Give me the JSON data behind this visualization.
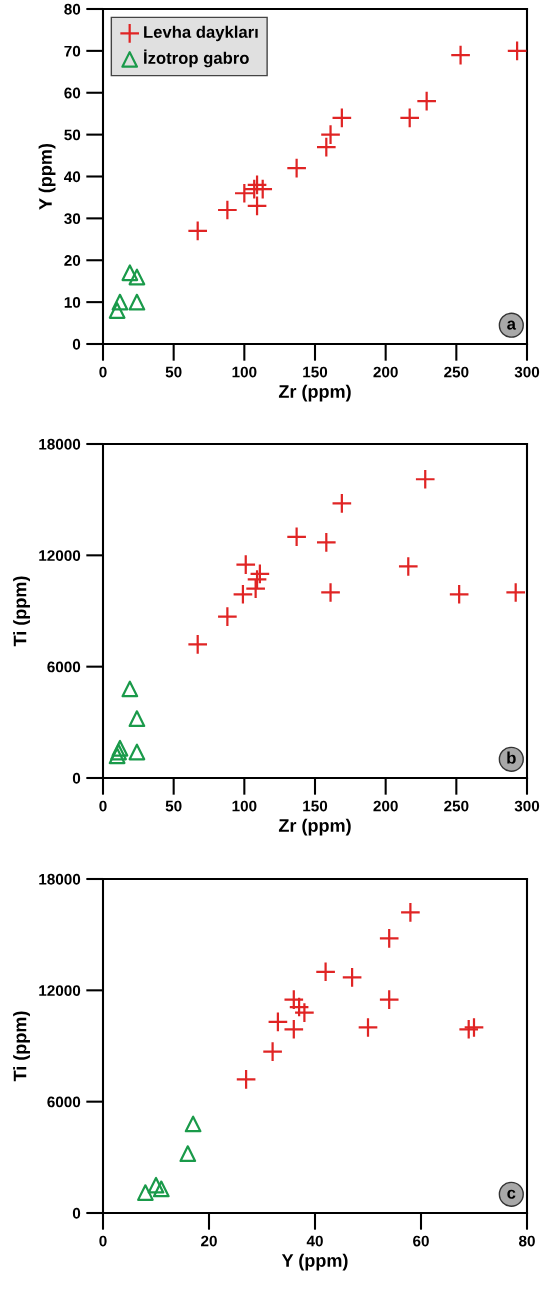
{
  "chart_data": [
    {
      "type": "scatter",
      "xlabel": "Zr (ppm)",
      "ylabel": "Y (ppm)",
      "xlim": [
        0,
        300
      ],
      "ylim": [
        0,
        80
      ],
      "xticks": [
        0,
        50,
        100,
        150,
        200,
        250,
        300
      ],
      "yticks": [
        0,
        10,
        20,
        30,
        40,
        50,
        60,
        70,
        80
      ],
      "grid": false,
      "legend": "top left",
      "annotations": [
        "a"
      ],
      "series": [
        {
          "name": "Levha daykları",
          "color": "#e02424",
          "marker": "cross",
          "x": [
            67,
            88,
            100,
            107,
            109,
            113,
            109,
            137,
            158,
            161,
            169,
            217,
            229,
            253,
            293
          ],
          "values": [
            27,
            32,
            36,
            37,
            38,
            37,
            33,
            42,
            47,
            50,
            54,
            54,
            58,
            69,
            70
          ]
        },
        {
          "name": "İzotrop gabro",
          "color": "#1a9a4a",
          "marker": "triangle",
          "x": [
            10,
            12,
            19,
            24,
            24
          ],
          "values": [
            8,
            10,
            17,
            16,
            10
          ]
        }
      ]
    },
    {
      "type": "scatter",
      "xlabel": "Zr (ppm)",
      "ylabel": "Ti (ppm)",
      "xlim": [
        0,
        300
      ],
      "ylim": [
        0,
        18000
      ],
      "xticks": [
        0,
        50,
        100,
        150,
        200,
        250,
        300
      ],
      "yticks": [
        0,
        6000,
        12000,
        18000
      ],
      "grid": false,
      "annotations": [
        "b"
      ],
      "series": [
        {
          "color": "#e02424",
          "marker": "cross",
          "x": [
            67,
            88,
            99,
            101,
            108,
            109,
            111,
            137,
            158,
            161,
            169,
            216,
            228,
            252,
            292
          ],
          "values": [
            7200,
            8700,
            9900,
            11500,
            10200,
            10700,
            11000,
            13000,
            12700,
            10000,
            14800,
            11400,
            16100,
            9900,
            10000
          ]
        },
        {
          "color": "#1a9a4a",
          "marker": "triangle",
          "x": [
            10,
            11,
            12,
            19,
            24,
            24
          ],
          "values": [
            1200,
            1400,
            1600,
            4800,
            3200,
            1400
          ]
        }
      ]
    },
    {
      "type": "scatter",
      "xlabel": "Y (ppm)",
      "ylabel": "Ti (ppm)",
      "xlim": [
        0,
        80
      ],
      "ylim": [
        0,
        18000
      ],
      "xticks": [
        0,
        20,
        40,
        60,
        80
      ],
      "yticks": [
        0,
        6000,
        12000,
        18000
      ],
      "grid": false,
      "annotations": [
        "c"
      ],
      "series": [
        {
          "color": "#e02424",
          "marker": "cross",
          "x": [
            27,
            32,
            36,
            36,
            33,
            37,
            38,
            42,
            47,
            50,
            54,
            54,
            58,
            69,
            70
          ],
          "values": [
            7200,
            8700,
            9900,
            11500,
            10300,
            11100,
            10800,
            13000,
            12700,
            10000,
            14800,
            11500,
            16200,
            9900,
            10000
          ]
        },
        {
          "color": "#1a9a4a",
          "marker": "triangle",
          "x": [
            8,
            10,
            11,
            16,
            17
          ],
          "values": [
            1100,
            1500,
            1300,
            3200,
            4800
          ]
        }
      ]
    }
  ]
}
